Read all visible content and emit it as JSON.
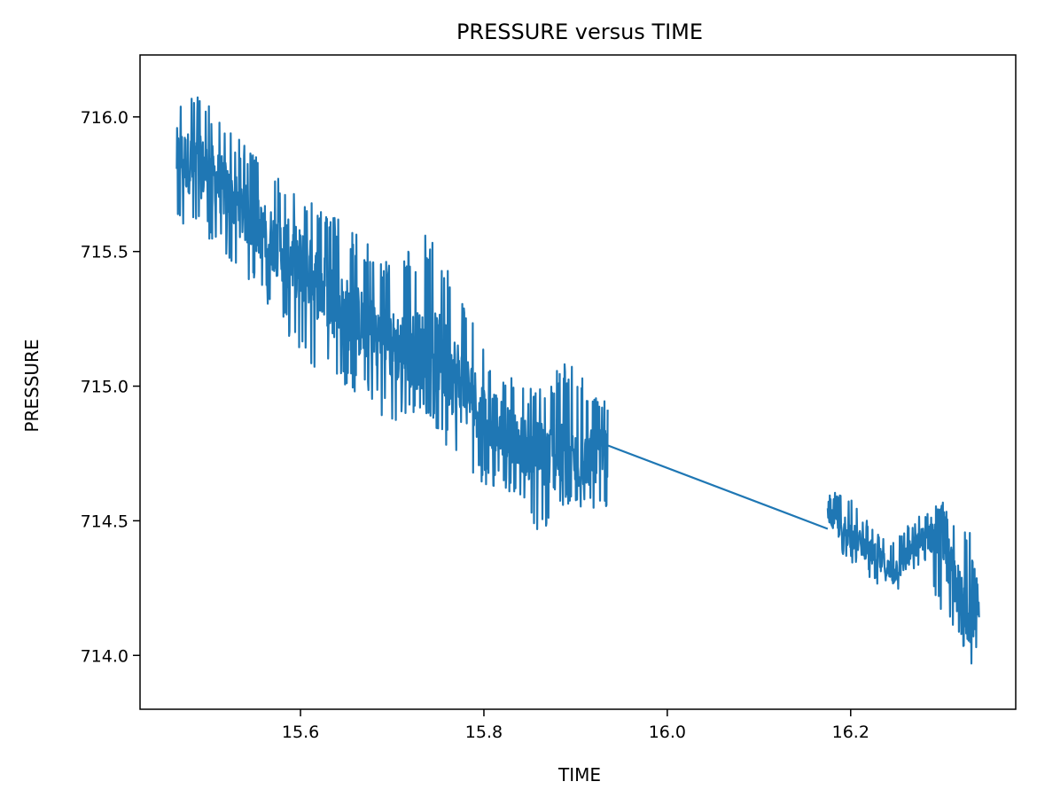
{
  "chart_data": {
    "type": "line",
    "title": "PRESSURE versus TIME",
    "xlabel": "TIME",
    "ylabel": "PRESSURE",
    "xlim": [
      15.425,
      16.38
    ],
    "ylim": [
      713.8,
      716.23
    ],
    "grid": false,
    "legend": "none",
    "x_ticks": [
      15.6,
      15.8,
      16.0,
      16.2
    ],
    "x_tick_labels": [
      "15.6",
      "15.8",
      "16.0",
      "16.2"
    ],
    "y_ticks": [
      714.0,
      714.5,
      715.0,
      715.5,
      716.0
    ],
    "y_tick_labels": [
      "714.0",
      "714.5",
      "715.0",
      "715.5",
      "716.0"
    ],
    "series": [
      {
        "color": "#1f77b4",
        "segments": [
          {
            "x_range": [
              15.465,
              15.935
            ],
            "trend": [
              [
                15.465,
                715.85
              ],
              [
                15.5,
                715.8
              ],
              [
                15.55,
                715.6
              ],
              [
                15.6,
                715.45
              ],
              [
                15.65,
                715.27
              ],
              [
                15.7,
                715.15
              ],
              [
                15.75,
                715.12
              ],
              [
                15.8,
                714.9
              ],
              [
                15.85,
                714.76
              ],
              [
                15.9,
                714.72
              ],
              [
                15.935,
                714.75
              ]
            ],
            "band": [
              [
                15.465,
                715.56,
                716.05
              ],
              [
                15.48,
                715.6,
                716.12
              ],
              [
                15.52,
                715.48,
                715.98
              ],
              [
                15.56,
                715.33,
                715.82
              ],
              [
                15.6,
                715.1,
                715.72
              ],
              [
                15.65,
                715.0,
                715.6
              ],
              [
                15.7,
                714.86,
                715.45
              ],
              [
                15.74,
                714.9,
                715.58
              ],
              [
                15.77,
                714.69,
                715.39
              ],
              [
                15.8,
                714.63,
                715.13
              ],
              [
                15.83,
                714.6,
                715.03
              ],
              [
                15.86,
                714.43,
                714.99
              ],
              [
                15.89,
                714.55,
                715.11
              ],
              [
                15.935,
                714.54,
                714.93
              ]
            ]
          },
          {
            "points": [
              [
                15.935,
                714.78
              ],
              [
                16.175,
                714.47
              ]
            ]
          },
          {
            "x_range": [
              16.175,
              16.34
            ],
            "trend": [
              [
                16.175,
                714.52
              ],
              [
                16.19,
                714.48
              ],
              [
                16.21,
                714.42
              ],
              [
                16.23,
                714.36
              ],
              [
                16.245,
                714.3
              ],
              [
                16.26,
                714.36
              ],
              [
                16.28,
                714.44
              ],
              [
                16.3,
                714.46
              ],
              [
                16.31,
                714.3
              ],
              [
                16.325,
                714.18
              ],
              [
                16.34,
                714.15
              ]
            ],
            "band": [
              [
                16.175,
                714.46,
                714.59
              ],
              [
                16.19,
                714.36,
                714.63
              ],
              [
                16.21,
                714.33,
                714.53
              ],
              [
                16.24,
                714.21,
                714.43
              ],
              [
                16.26,
                714.27,
                714.49
              ],
              [
                16.28,
                714.34,
                714.53
              ],
              [
                16.3,
                714.08,
                714.58
              ],
              [
                16.32,
                714.05,
                714.47
              ],
              [
                16.33,
                713.91,
                714.46
              ],
              [
                16.34,
                714.06,
                714.25
              ]
            ]
          }
        ]
      }
    ]
  }
}
